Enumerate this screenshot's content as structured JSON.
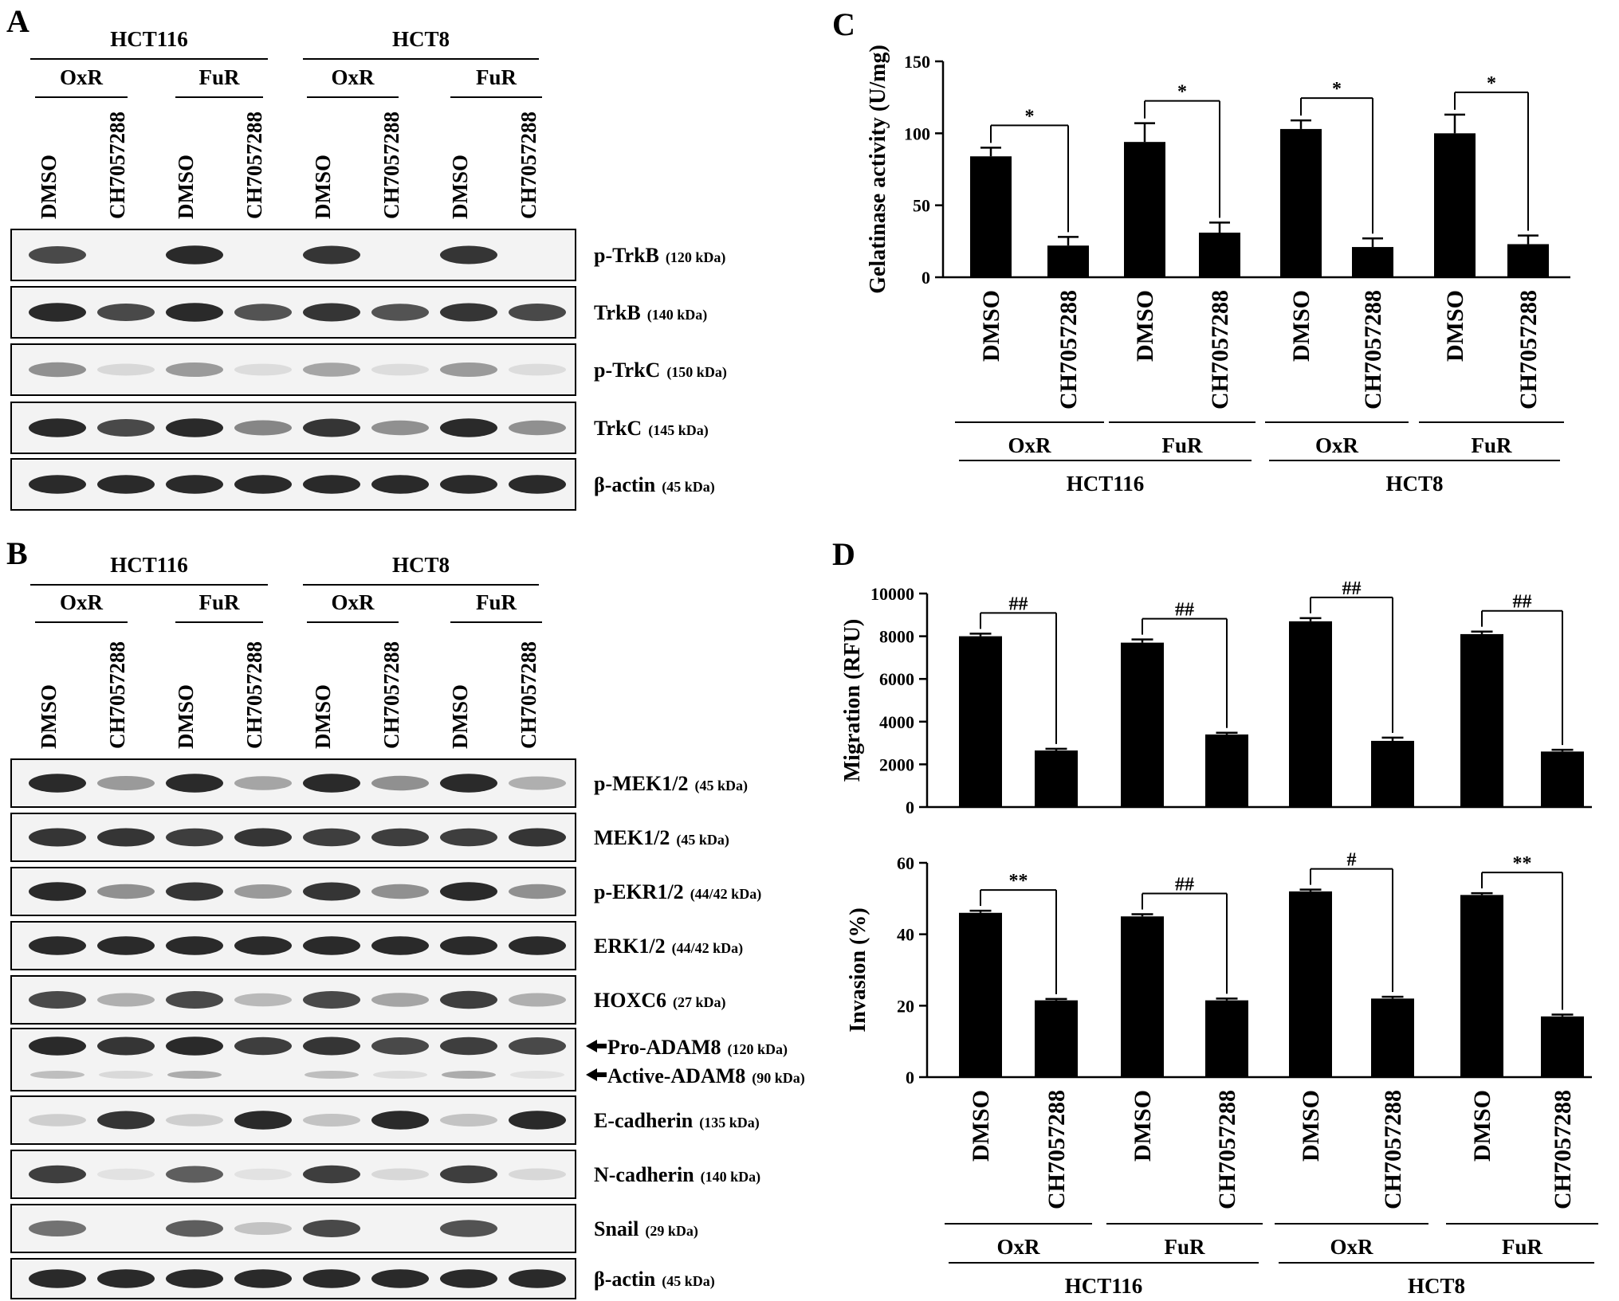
{
  "panels": {
    "A": {
      "label": "A",
      "groups": [
        "HCT116",
        "HCT8"
      ],
      "subgroups": [
        "OxR",
        "FuR",
        "OxR",
        "FuR"
      ],
      "lanes": [
        "DMSO",
        "CH7057288",
        "DMSO",
        "CH7057288",
        "DMSO",
        "CH7057288",
        "DMSO",
        "CH7057288"
      ],
      "blots": [
        {
          "name": "p-TrkB",
          "size": "(120 kDa)"
        },
        {
          "name": "TrkB",
          "size": "(140 kDa)"
        },
        {
          "name": "p-TrkC",
          "size": "(150 kDa)"
        },
        {
          "name": "TrkC",
          "size": "(145 kDa)"
        },
        {
          "name": "β-actin",
          "size": "(45 kDa)"
        }
      ]
    },
    "B": {
      "label": "B",
      "groups": [
        "HCT116",
        "HCT8"
      ],
      "subgroups": [
        "OxR",
        "FuR",
        "OxR",
        "FuR"
      ],
      "lanes": [
        "DMSO",
        "CH7057288",
        "DMSO",
        "CH7057288",
        "DMSO",
        "CH7057288",
        "DMSO",
        "CH7057288"
      ],
      "blots": [
        {
          "name": "p-MEK1/2",
          "size": "(45 kDa)"
        },
        {
          "name": "MEK1/2",
          "size": "(45 kDa)"
        },
        {
          "name": "p-EKR1/2",
          "size": "(44/42 kDa)"
        },
        {
          "name": "ERK1/2",
          "size": "(44/42 kDa)"
        },
        {
          "name": "HOXC6",
          "size": "(27 kDa)"
        },
        {
          "name": "Pro-ADAM8",
          "size": "(120 kDa)",
          "name2": "Active-ADAM8",
          "size2": "(90 kDa)"
        },
        {
          "name": "E-cadherin",
          "size": "(135 kDa)"
        },
        {
          "name": "N-cadherin",
          "size": "(140 kDa)"
        },
        {
          "name": "Snail",
          "size": "(29 kDa)"
        },
        {
          "name": "β-actin",
          "size": "(45 kDa)"
        }
      ]
    },
    "C": {
      "label": "C"
    },
    "D": {
      "label": "D"
    }
  },
  "chart_data": [
    {
      "type": "bar",
      "panel": "C",
      "categories": [
        "DMSO",
        "CH7057288",
        "DMSO",
        "CH7057288",
        "DMSO",
        "CH7057288",
        "DMSO",
        "CH7057288"
      ],
      "values": [
        84,
        22,
        94,
        31,
        103,
        21,
        100,
        23
      ],
      "errors": [
        6,
        6,
        13,
        7,
        6,
        6,
        13,
        6
      ],
      "ylabel": "Gelatinase activity (U/mg)",
      "ylim": [
        0,
        150
      ],
      "yticks": [
        0,
        50,
        100,
        150
      ],
      "significance": [
        "*",
        "*",
        "*",
        "*"
      ],
      "subgroups": [
        "OxR",
        "FuR",
        "OxR",
        "FuR"
      ],
      "groups": [
        "HCT116",
        "HCT8"
      ]
    },
    {
      "type": "bar",
      "panel": "D",
      "categories": [
        "DMSO",
        "CH7057288",
        "DMSO",
        "CH7057288",
        "DMSO",
        "CH7057288",
        "DMSO",
        "CH7057288"
      ],
      "values": [
        8000,
        2650,
        7700,
        3400,
        8700,
        3100,
        8100,
        2600
      ],
      "errors": [
        120,
        80,
        150,
        80,
        150,
        150,
        120,
        80
      ],
      "ylabel": "Migration (RFU)",
      "ylim": [
        0,
        10000
      ],
      "yticks": [
        0,
        2000,
        4000,
        6000,
        8000,
        10000
      ],
      "significance": [
        "##",
        "##",
        "##",
        "##"
      ]
    },
    {
      "type": "bar",
      "panel": "D",
      "categories": [
        "DMSO",
        "CH7057288",
        "DMSO",
        "CH7057288",
        "DMSO",
        "CH7057288",
        "DMSO",
        "CH7057288"
      ],
      "values": [
        46,
        21.5,
        45,
        21.5,
        52,
        22,
        51,
        17
      ],
      "errors": [
        0.6,
        0.4,
        0.6,
        0.5,
        0.5,
        0.5,
        0.5,
        0.5
      ],
      "ylabel": "Invasion (%)",
      "ylim": [
        0,
        60
      ],
      "yticks": [
        0,
        20,
        40,
        60
      ],
      "significance": [
        "**",
        "##",
        "#",
        "**"
      ],
      "subgroups": [
        "OxR",
        "FuR",
        "OxR",
        "FuR"
      ],
      "groups": [
        "HCT116",
        "HCT8"
      ]
    }
  ]
}
